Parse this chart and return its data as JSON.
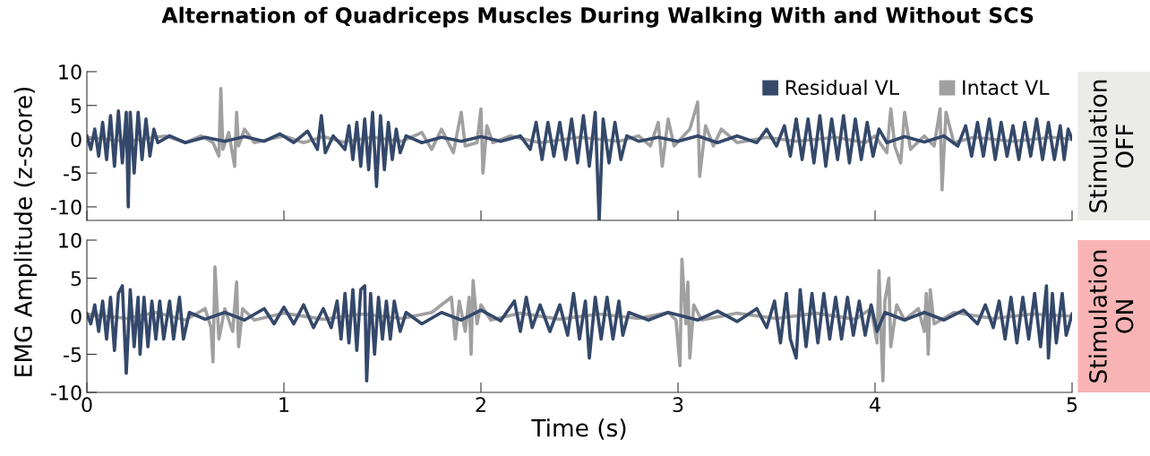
{
  "chart_data": [
    {
      "type": "line",
      "title": "Alternation of Quadriceps Muscles During Walking With and Without SCS",
      "ylabel": "EMG Amplitude (z-score)",
      "xlim": [
        0,
        5
      ],
      "xticks": [
        0,
        1,
        2,
        3,
        4,
        5
      ],
      "ylim": [
        -12,
        10
      ],
      "yticks": [
        -10,
        -5,
        0,
        5,
        10
      ],
      "tick_labels": "y",
      "legend": "top right",
      "grid": false,
      "marker": "none",
      "line_style": "solid",
      "annotations": [
        "Stimulation\nOFF"
      ],
      "series": [
        {
          "name": "Intact VL",
          "color": "#a0a0a0",
          "x": [
            0,
            0.2,
            0.4,
            0.5,
            0.58,
            0.64,
            0.67,
            0.68,
            0.69,
            0.72,
            0.75,
            0.76,
            0.77,
            0.8,
            0.85,
            1.0,
            1.1,
            1.2,
            1.3,
            1.45,
            1.6,
            1.7,
            1.75,
            1.8,
            1.86,
            1.9,
            1.92,
            1.98,
            2.0,
            2.01,
            2.03,
            2.06,
            2.15,
            2.3,
            2.5,
            2.7,
            2.8,
            2.86,
            2.9,
            2.92,
            2.95,
            2.98,
            3.06,
            3.1,
            3.11,
            3.14,
            3.18,
            3.22,
            3.3,
            3.45,
            3.6,
            3.8,
            3.95,
            4.0,
            4.06,
            4.08,
            4.1,
            4.13,
            4.15,
            4.18,
            4.25,
            4.3,
            4.33,
            4.34,
            4.36,
            4.4,
            4.5,
            4.7,
            4.9,
            5.0
          ],
          "values": [
            0.3,
            -0.3,
            0.5,
            -0.5,
            0.5,
            -0.5,
            -2.5,
            7.5,
            -1.5,
            1,
            -4,
            4,
            -1,
            1.5,
            -0.5,
            0.5,
            -0.5,
            0.4,
            -0.4,
            0.3,
            -0.3,
            1,
            -1.5,
            1.5,
            -2,
            4,
            -1,
            -0.5,
            4.5,
            -5,
            2,
            -0.5,
            0.5,
            -0.5,
            0.3,
            -0.3,
            0.5,
            -1,
            2.5,
            -4,
            3,
            -1,
            1.5,
            5.5,
            -5.5,
            2,
            -1,
            1.5,
            -0.5,
            0.3,
            -0.3,
            0.3,
            -0.5,
            0.5,
            -2,
            4.5,
            -1,
            -3.5,
            4,
            -1.5,
            0.5,
            -1,
            4.5,
            -7.5,
            4,
            -0.5,
            0.3,
            -0.3,
            0.3,
            0
          ]
        },
        {
          "name": "Residual VL",
          "color": "#34486a",
          "x": [
            0,
            0.02,
            0.04,
            0.06,
            0.08,
            0.1,
            0.12,
            0.14,
            0.16,
            0.18,
            0.2,
            0.21,
            0.22,
            0.24,
            0.26,
            0.28,
            0.3,
            0.32,
            0.34,
            0.36,
            0.42,
            0.5,
            0.6,
            0.7,
            0.8,
            0.9,
            0.98,
            1.05,
            1.12,
            1.17,
            1.19,
            1.21,
            1.25,
            1.31,
            1.33,
            1.35,
            1.37,
            1.39,
            1.41,
            1.43,
            1.45,
            1.47,
            1.49,
            1.51,
            1.53,
            1.55,
            1.57,
            1.59,
            1.62,
            1.7,
            1.8,
            1.9,
            2.0,
            2.1,
            2.2,
            2.25,
            2.28,
            2.31,
            2.34,
            2.37,
            2.4,
            2.43,
            2.46,
            2.49,
            2.52,
            2.55,
            2.58,
            2.6,
            2.62,
            2.65,
            2.68,
            2.71,
            2.74,
            2.8,
            2.9,
            3.0,
            3.1,
            3.2,
            3.3,
            3.4,
            3.45,
            3.5,
            3.54,
            3.57,
            3.6,
            3.63,
            3.66,
            3.69,
            3.72,
            3.75,
            3.78,
            3.81,
            3.84,
            3.87,
            3.9,
            3.93,
            3.96,
            3.99,
            4.02,
            4.06,
            4.15,
            4.25,
            4.35,
            4.42,
            4.46,
            4.49,
            4.52,
            4.55,
            4.58,
            4.61,
            4.64,
            4.67,
            4.7,
            4.73,
            4.76,
            4.79,
            4.82,
            4.85,
            4.88,
            4.91,
            4.94,
            4.96,
            4.98,
            5.0
          ],
          "values": [
            0.5,
            -1.5,
            1.5,
            -2.5,
            2.5,
            -3,
            3.5,
            -4,
            4.2,
            -3.5,
            4,
            -10,
            4,
            -5,
            4,
            -3,
            3,
            -2.5,
            1.5,
            -0.5,
            0.5,
            -0.5,
            0.3,
            -0.3,
            0.4,
            -0.3,
            0.8,
            -0.5,
            1.2,
            -1.5,
            3.5,
            -2,
            0.5,
            -1.5,
            2,
            -3,
            2.5,
            -4,
            3,
            -4.5,
            4,
            -7,
            3.5,
            -4.5,
            2.5,
            -3,
            1.5,
            -2,
            0.5,
            -0.5,
            0.3,
            -0.3,
            0.4,
            -0.3,
            0.5,
            -1.5,
            2.5,
            -3,
            2.5,
            -2.5,
            2.5,
            -3,
            3,
            -3.5,
            3.5,
            -4,
            4,
            -12,
            3,
            -3.5,
            2.5,
            -3,
            0.5,
            -0.3,
            0.3,
            -0.3,
            0.5,
            -0.5,
            0.5,
            -0.5,
            1.5,
            -1,
            2,
            -2.5,
            3,
            -3,
            3,
            -3.5,
            3.5,
            -4,
            3,
            -3,
            3.5,
            -3.5,
            3,
            -3,
            2.5,
            -2.5,
            1.5,
            -0.5,
            0.4,
            -0.4,
            0.5,
            -1,
            2,
            -2.5,
            2.5,
            -2.5,
            3,
            -3,
            2.5,
            -2.5,
            2,
            -3,
            2.5,
            -2.5,
            3,
            -3,
            2.5,
            -3,
            2,
            -3,
            1.5,
            0
          ]
        }
      ]
    },
    {
      "type": "line",
      "xlabel": "Time (s)",
      "xlim": [
        0,
        5
      ],
      "xticks": [
        0,
        1,
        2,
        3,
        4,
        5
      ],
      "ylim": [
        -10,
        10
      ],
      "yticks": [
        -10,
        -5,
        0,
        5,
        10
      ],
      "grid": false,
      "marker": "none",
      "line_style": "solid",
      "annotations": [
        "Stimulation\nON"
      ],
      "series": [
        {
          "color": "#a0a0a0",
          "x": [
            0,
            0.2,
            0.35,
            0.5,
            0.6,
            0.63,
            0.64,
            0.65,
            0.67,
            0.7,
            0.74,
            0.76,
            0.77,
            0.79,
            0.85,
            1.0,
            1.2,
            1.4,
            1.6,
            1.75,
            1.85,
            1.87,
            1.89,
            1.92,
            1.94,
            1.95,
            1.96,
            1.98,
            2.0,
            2.05,
            2.2,
            2.4,
            2.6,
            2.8,
            2.95,
            2.99,
            3.01,
            3.02,
            3.04,
            3.05,
            3.06,
            3.08,
            3.12,
            3.3,
            3.5,
            3.7,
            3.9,
            3.98,
            4.01,
            4.02,
            4.03,
            4.04,
            4.05,
            4.07,
            4.08,
            4.11,
            4.15,
            4.22,
            4.25,
            4.26,
            4.27,
            4.28,
            4.3,
            4.4,
            4.6,
            4.8,
            5.0
          ],
          "values": [
            0.3,
            -0.3,
            0.5,
            -0.5,
            1,
            -1.5,
            -6,
            6.5,
            -3,
            1,
            -2,
            4.5,
            -4,
            1,
            -0.5,
            0.4,
            -0.4,
            0.3,
            -0.3,
            0.5,
            2.5,
            -3,
            2,
            -2,
            2.5,
            -5,
            4.7,
            -1,
            1.5,
            -0.5,
            0.4,
            -0.4,
            0.3,
            -0.3,
            0.5,
            -0.5,
            -6.5,
            7.5,
            -1,
            4.5,
            -5.5,
            1.5,
            -0.5,
            0.4,
            -0.3,
            0.4,
            -0.4,
            1,
            -3.5,
            6,
            -2,
            -8.5,
            2,
            5,
            -4,
            1.5,
            -0.5,
            1,
            -2,
            3,
            -5,
            3.5,
            -1,
            0.5,
            -0.3,
            0.3,
            0
          ]
        },
        {
          "color": "#34486a",
          "x": [
            0,
            0.02,
            0.04,
            0.06,
            0.08,
            0.1,
            0.12,
            0.14,
            0.16,
            0.18,
            0.2,
            0.22,
            0.24,
            0.26,
            0.27,
            0.29,
            0.31,
            0.33,
            0.35,
            0.37,
            0.39,
            0.42,
            0.44,
            0.47,
            0.49,
            0.52,
            0.6,
            0.7,
            0.8,
            0.9,
            0.95,
            1.0,
            1.05,
            1.1,
            1.15,
            1.2,
            1.24,
            1.27,
            1.29,
            1.31,
            1.33,
            1.35,
            1.37,
            1.39,
            1.41,
            1.42,
            1.44,
            1.46,
            1.48,
            1.5,
            1.52,
            1.54,
            1.56,
            1.59,
            1.62,
            1.7,
            1.8,
            1.9,
            2.0,
            2.1,
            2.17,
            2.2,
            2.23,
            2.26,
            2.3,
            2.35,
            2.4,
            2.44,
            2.47,
            2.5,
            2.53,
            2.55,
            2.58,
            2.61,
            2.64,
            2.67,
            2.7,
            2.72,
            2.75,
            2.85,
            2.95,
            3.1,
            3.2,
            3.3,
            3.4,
            3.45,
            3.49,
            3.52,
            3.55,
            3.57,
            3.6,
            3.62,
            3.65,
            3.68,
            3.71,
            3.74,
            3.77,
            3.8,
            3.83,
            3.86,
            3.89,
            3.92,
            3.95,
            3.98,
            4.01,
            4.05,
            4.15,
            4.25,
            4.35,
            4.45,
            4.52,
            4.56,
            4.6,
            4.63,
            4.66,
            4.69,
            4.72,
            4.75,
            4.78,
            4.81,
            4.84,
            4.87,
            4.88,
            4.9,
            4.92,
            4.95,
            4.97,
            5.0
          ],
          "values": [
            0.3,
            -1,
            1.5,
            -2,
            2,
            -3,
            2.5,
            -4.5,
            3,
            4,
            -7.5,
            3.5,
            -4,
            2.5,
            -5,
            2.5,
            -4,
            2,
            -3,
            2,
            -3,
            2,
            -3,
            2.5,
            -3,
            0.5,
            -0.4,
            0.5,
            -0.5,
            1,
            -1,
            1.2,
            -1,
            1.5,
            -1.5,
            1,
            -1.5,
            2,
            -3,
            3,
            -3.5,
            3.5,
            -4.5,
            3.5,
            4,
            -8.5,
            3,
            -5,
            2.5,
            -3,
            2,
            -3,
            2,
            -2,
            0.5,
            -1,
            0.5,
            -0.5,
            0.8,
            -0.6,
            2,
            -2,
            2.5,
            -1.5,
            1.5,
            -2,
            1.5,
            -2.5,
            3,
            -3,
            2,
            -5.5,
            2.5,
            -3,
            2.5,
            -3,
            2,
            -2.5,
            0.5,
            -0.5,
            0.5,
            -0.5,
            0.7,
            -0.7,
            1,
            -1.5,
            2,
            -3.5,
            3,
            -3,
            -5.5,
            3.5,
            -4,
            3,
            -3.5,
            3,
            -3,
            2.5,
            -3,
            2.5,
            -2.5,
            2,
            -2.5,
            1.5,
            -2,
            0.5,
            -0.5,
            0.5,
            -0.5,
            0.8,
            -1,
            1.5,
            -1.5,
            2,
            -3,
            2.5,
            -3.5,
            2.5,
            -3,
            3,
            -4,
            4,
            -5.5,
            3,
            -3.5,
            3,
            -2.5,
            0.3
          ]
        }
      ]
    }
  ]
}
